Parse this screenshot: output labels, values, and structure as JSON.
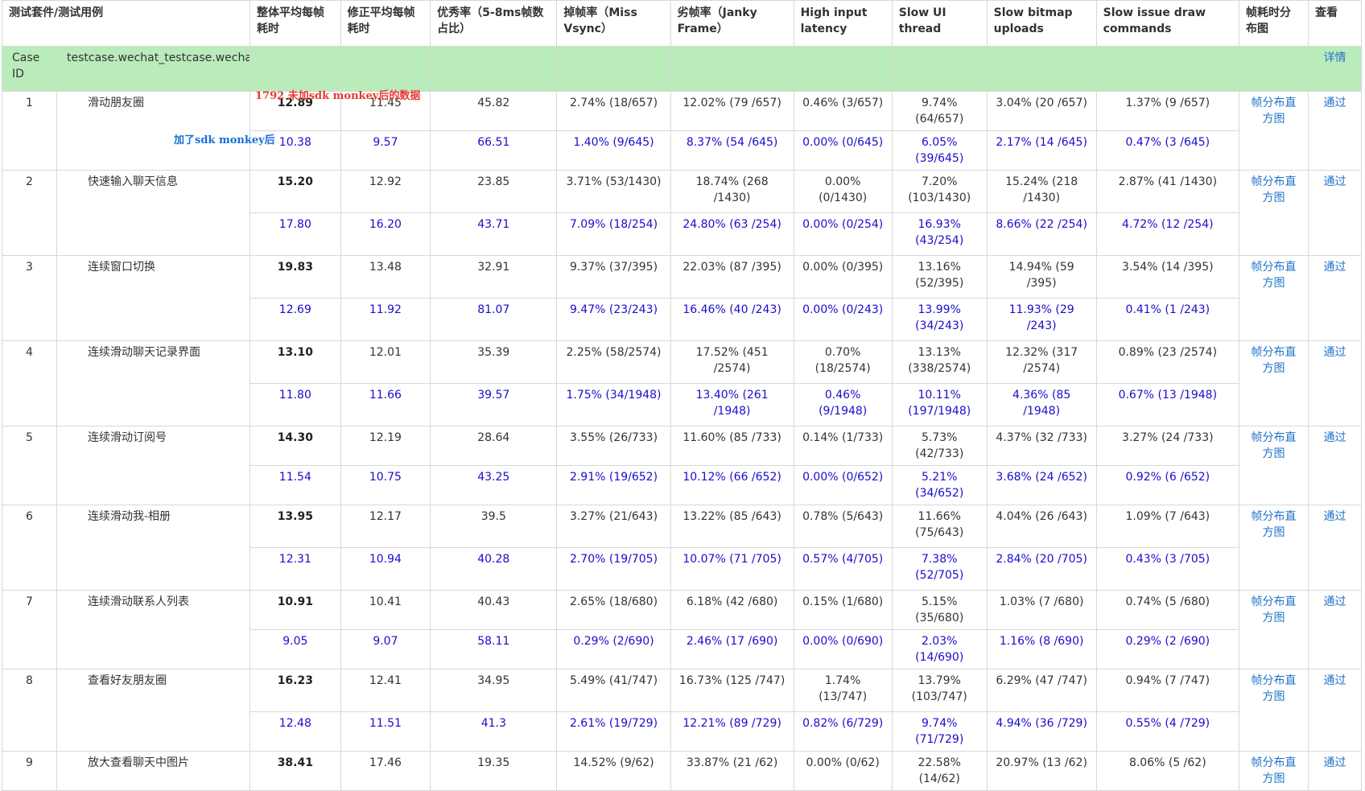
{
  "headers": [
    "测试套件/测试用例",
    "整体平均每帧耗时",
    "修正平均每帧耗时",
    "优秀率（5-8ms帧数占比）",
    "掉帧率（Miss Vsync）",
    "劣帧率（Janky Frame）",
    "High input latency",
    "Slow UI thread",
    "Slow bitmap uploads",
    "Slow issue draw commands",
    "帧耗时分布图",
    "查看"
  ],
  "suite": {
    "id_label": "Case ID",
    "name": "testcase.wechat_testcase.wechattest",
    "detail": "详情"
  },
  "notes": {
    "red": "1792  未加sdk  monkey后的数据",
    "blue": "加了sdk  monkey后"
  },
  "cases": [
    {
      "id": "1",
      "name": "滑动朋友圈",
      "link": "帧分布直方图",
      "status": "通过",
      "before": [
        "12.89",
        "11.45",
        "45.82",
        "2.74% (18/657)",
        "12.02% (79 /657)",
        "0.46% (3/657)",
        "9.74% (64/657)",
        "3.04% (20 /657)",
        "1.37% (9 /657)"
      ],
      "after": [
        "10.38",
        "9.57",
        "66.51",
        "1.40% (9/645)",
        "8.37% (54 /645)",
        "0.00% (0/645)",
        "6.05% (39/645)",
        "2.17% (14 /645)",
        "0.47% (3 /645)"
      ]
    },
    {
      "id": "2",
      "name": "快速输入聊天信息",
      "link": "帧分布直方图",
      "status": "通过",
      "before": [
        "15.20",
        "12.92",
        "23.85",
        "3.71% (53/1430)",
        "18.74% (268 /1430)",
        "0.00% (0/1430)",
        "7.20% (103/1430)",
        "15.24% (218 /1430)",
        "2.87% (41 /1430)"
      ],
      "after": [
        "17.80",
        "16.20",
        "43.71",
        "7.09% (18/254)",
        "24.80% (63 /254)",
        "0.00% (0/254)",
        "16.93% (43/254)",
        "8.66% (22 /254)",
        "4.72% (12 /254)"
      ]
    },
    {
      "id": "3",
      "name": "连续窗口切换",
      "link": "帧分布直方图",
      "status": "通过",
      "before": [
        "19.83",
        "13.48",
        "32.91",
        "9.37% (37/395)",
        "22.03% (87 /395)",
        "0.00% (0/395)",
        "13.16% (52/395)",
        "14.94% (59 /395)",
        "3.54% (14 /395)"
      ],
      "after": [
        "12.69",
        "11.92",
        "81.07",
        "9.47% (23/243)",
        "16.46% (40 /243)",
        "0.00% (0/243)",
        "13.99% (34/243)",
        "11.93% (29 /243)",
        "0.41% (1 /243)"
      ]
    },
    {
      "id": "4",
      "name": "连续滑动聊天记录界面",
      "link": "帧分布直方图",
      "status": "通过",
      "before": [
        "13.10",
        "12.01",
        "35.39",
        "2.25% (58/2574)",
        "17.52% (451 /2574)",
        "0.70% (18/2574)",
        "13.13% (338/2574)",
        "12.32% (317 /2574)",
        "0.89% (23 /2574)"
      ],
      "after": [
        "11.80",
        "11.66",
        "39.57",
        "1.75% (34/1948)",
        "13.40% (261 /1948)",
        "0.46% (9/1948)",
        "10.11% (197/1948)",
        "4.36% (85 /1948)",
        "0.67% (13 /1948)"
      ]
    },
    {
      "id": "5",
      "name": "连续滑动订阅号",
      "link": "帧分布直方图",
      "status": "通过",
      "before": [
        "14.30",
        "12.19",
        "28.64",
        "3.55% (26/733)",
        "11.60% (85 /733)",
        "0.14% (1/733)",
        "5.73% (42/733)",
        "4.37% (32 /733)",
        "3.27% (24 /733)"
      ],
      "after": [
        "11.54",
        "10.75",
        "43.25",
        "2.91% (19/652)",
        "10.12% (66 /652)",
        "0.00% (0/652)",
        "5.21% (34/652)",
        "3.68% (24 /652)",
        "0.92% (6 /652)"
      ]
    },
    {
      "id": "6",
      "name": "连续滑动我-相册",
      "link": "帧分布直方图",
      "status": "通过",
      "before": [
        "13.95",
        "12.17",
        "39.5",
        "3.27% (21/643)",
        "13.22% (85 /643)",
        "0.78% (5/643)",
        "11.66% (75/643)",
        "4.04% (26 /643)",
        "1.09% (7 /643)"
      ],
      "after": [
        "12.31",
        "10.94",
        "40.28",
        "2.70% (19/705)",
        "10.07% (71 /705)",
        "0.57% (4/705)",
        "7.38% (52/705)",
        "2.84% (20 /705)",
        "0.43% (3 /705)"
      ]
    },
    {
      "id": "7",
      "name": "连续滑动联系人列表",
      "link": "帧分布直方图",
      "status": "通过",
      "before": [
        "10.91",
        "10.41",
        "40.43",
        "2.65% (18/680)",
        "6.18% (42 /680)",
        "0.15% (1/680)",
        "5.15% (35/680)",
        "1.03% (7 /680)",
        "0.74% (5 /680)"
      ],
      "after": [
        "9.05",
        "9.07",
        "58.11",
        "0.29% (2/690)",
        "2.46% (17 /690)",
        "0.00% (0/690)",
        "2.03% (14/690)",
        "1.16% (8 /690)",
        "0.29% (2 /690)"
      ]
    },
    {
      "id": "8",
      "name": "查看好友朋友圈",
      "link": "帧分布直方图",
      "status": "通过",
      "before": [
        "16.23",
        "12.41",
        "34.95",
        "5.49% (41/747)",
        "16.73% (125 /747)",
        "1.74% (13/747)",
        "13.79% (103/747)",
        "6.29% (47 /747)",
        "0.94% (7 /747)"
      ],
      "after": [
        "12.48",
        "11.51",
        "41.3",
        "2.61% (19/729)",
        "12.21% (89 /729)",
        "0.82% (6/729)",
        "9.74% (71/729)",
        "4.94% (36 /729)",
        "0.55% (4 /729)"
      ]
    },
    {
      "id": "9",
      "name": "放大查看聊天中图片",
      "link": "帧分布直方图",
      "status": "通过",
      "before": [
        "38.41",
        "17.46",
        "19.35",
        "14.52% (9/62)",
        "33.87% (21 /62)",
        "0.00% (0/62)",
        "22.58% (14/62)",
        "20.97% (13 /62)",
        "8.06% (5 /62)"
      ],
      "after": []
    }
  ]
}
